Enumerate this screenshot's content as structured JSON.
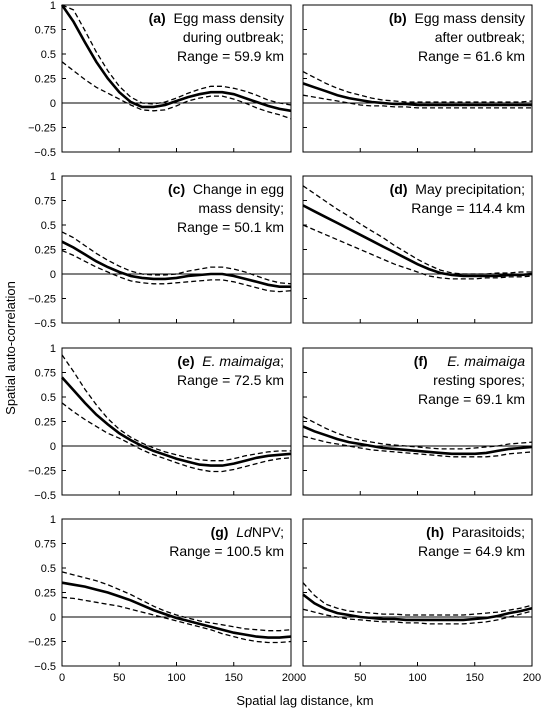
{
  "figure": {
    "ylabel": "Spatial auto-correlation",
    "xlabel": "Spatial lag distance, km"
  },
  "chart_data": [
    {
      "type": "line",
      "tag": "(a)",
      "label_lines": [
        "Egg mass density",
        "during outbreak;",
        "Range = 59.9 km"
      ],
      "xlim": [
        0,
        200
      ],
      "ylim": [
        -0.5,
        1
      ],
      "xticks": [
        "0",
        "50",
        "100",
        "150",
        "200"
      ],
      "yticks": [
        "1",
        "0.75",
        "0.5",
        "0.25",
        "0",
        "−0.25",
        "−0.5"
      ],
      "x": [
        0,
        10,
        20,
        30,
        40,
        50,
        60,
        70,
        80,
        90,
        100,
        110,
        120,
        130,
        140,
        150,
        160,
        170,
        180,
        190,
        200
      ],
      "series": [
        {
          "values": [
            1.0,
            0.83,
            0.62,
            0.42,
            0.25,
            0.11,
            0.01,
            -0.04,
            -0.04,
            -0.02,
            0.02,
            0.06,
            0.09,
            0.11,
            0.11,
            0.09,
            0.05,
            0.01,
            -0.03,
            -0.06,
            -0.08
          ]
        },
        {
          "values": [
            1.08,
            0.95,
            0.74,
            0.52,
            0.33,
            0.17,
            0.06,
            0.0,
            -0.01,
            0.01,
            0.05,
            0.1,
            0.14,
            0.17,
            0.17,
            0.15,
            0.12,
            0.08,
            0.03,
            0.0,
            -0.02
          ]
        },
        {
          "values": [
            0.42,
            0.33,
            0.24,
            0.16,
            0.1,
            0.04,
            -0.02,
            -0.07,
            -0.08,
            -0.07,
            -0.03,
            0.02,
            0.05,
            0.07,
            0.07,
            0.04,
            0.0,
            -0.05,
            -0.09,
            -0.12,
            -0.16
          ]
        }
      ]
    },
    {
      "type": "line",
      "tag": "(b)",
      "label_lines": [
        "Egg mass density",
        "after outbreak;",
        "Range = 61.6 km"
      ],
      "xlim": [
        0,
        200
      ],
      "ylim": [
        -0.5,
        1
      ],
      "xticks": [
        "0",
        "50",
        "100",
        "150",
        "200"
      ],
      "yticks": [
        "1",
        "0.75",
        "0.5",
        "0.25",
        "0",
        "−0.25",
        "−0.5"
      ],
      "x": [
        0,
        10,
        20,
        30,
        40,
        50,
        60,
        70,
        80,
        90,
        100,
        110,
        120,
        130,
        140,
        150,
        160,
        170,
        180,
        190,
        200
      ],
      "series": [
        {
          "values": [
            0.2,
            0.16,
            0.12,
            0.08,
            0.05,
            0.03,
            0.01,
            0.0,
            -0.01,
            -0.01,
            -0.02,
            -0.02,
            -0.02,
            -0.02,
            -0.02,
            -0.02,
            -0.02,
            -0.02,
            -0.02,
            -0.02,
            -0.02
          ]
        },
        {
          "values": [
            0.32,
            0.26,
            0.2,
            0.15,
            0.11,
            0.08,
            0.05,
            0.03,
            0.02,
            0.01,
            0.01,
            0.01,
            0.01,
            0.01,
            0.01,
            0.01,
            0.01,
            0.01,
            0.01,
            0.01,
            0.02
          ]
        },
        {
          "values": [
            0.08,
            0.06,
            0.04,
            0.02,
            0.0,
            -0.02,
            -0.03,
            -0.03,
            -0.04,
            -0.04,
            -0.05,
            -0.05,
            -0.05,
            -0.05,
            -0.05,
            -0.05,
            -0.05,
            -0.05,
            -0.05,
            -0.05,
            -0.05
          ]
        }
      ]
    },
    {
      "type": "line",
      "tag": "(c)",
      "label_lines": [
        "Change in egg",
        "mass density;",
        "Range = 50.1 km"
      ],
      "xlim": [
        0,
        200
      ],
      "ylim": [
        -0.5,
        1
      ],
      "xticks": [
        "0",
        "50",
        "100",
        "150",
        "200"
      ],
      "yticks": [
        "1",
        "0.75",
        "0.5",
        "0.25",
        "0",
        "−0.25",
        "−0.5"
      ],
      "x": [
        0,
        10,
        20,
        30,
        40,
        50,
        60,
        70,
        80,
        90,
        100,
        110,
        120,
        130,
        140,
        150,
        160,
        170,
        180,
        190,
        200
      ],
      "series": [
        {
          "values": [
            0.33,
            0.27,
            0.2,
            0.13,
            0.07,
            0.02,
            -0.02,
            -0.04,
            -0.05,
            -0.05,
            -0.04,
            -0.02,
            -0.01,
            0.0,
            0.0,
            -0.02,
            -0.05,
            -0.08,
            -0.11,
            -0.13,
            -0.13
          ]
        },
        {
          "values": [
            0.43,
            0.37,
            0.29,
            0.21,
            0.14,
            0.08,
            0.03,
            0.0,
            -0.01,
            -0.01,
            0.0,
            0.03,
            0.05,
            0.07,
            0.07,
            0.05,
            0.02,
            -0.02,
            -0.06,
            -0.09,
            -0.1
          ]
        },
        {
          "values": [
            0.24,
            0.19,
            0.13,
            0.07,
            0.02,
            -0.03,
            -0.07,
            -0.09,
            -0.1,
            -0.1,
            -0.09,
            -0.08,
            -0.07,
            -0.06,
            -0.06,
            -0.08,
            -0.11,
            -0.14,
            -0.17,
            -0.18,
            -0.17
          ]
        }
      ]
    },
    {
      "type": "line",
      "tag": "(d)",
      "label_lines": [
        "May precipitation;",
        "Range = 114.4 km"
      ],
      "xlim": [
        0,
        200
      ],
      "ylim": [
        -0.5,
        1
      ],
      "xticks": [
        "0",
        "50",
        "100",
        "150",
        "200"
      ],
      "yticks": [
        "1",
        "0.75",
        "0.5",
        "0.25",
        "0",
        "−0.25",
        "−0.5"
      ],
      "x": [
        0,
        10,
        20,
        30,
        40,
        50,
        60,
        70,
        80,
        90,
        100,
        110,
        120,
        130,
        140,
        150,
        160,
        170,
        180,
        190,
        200
      ],
      "series": [
        {
          "values": [
            0.7,
            0.64,
            0.58,
            0.52,
            0.46,
            0.4,
            0.34,
            0.28,
            0.22,
            0.16,
            0.1,
            0.05,
            0.01,
            -0.01,
            -0.02,
            -0.02,
            -0.02,
            -0.02,
            -0.01,
            -0.01,
            0.0
          ]
        },
        {
          "values": [
            0.9,
            0.82,
            0.74,
            0.66,
            0.59,
            0.51,
            0.44,
            0.37,
            0.29,
            0.22,
            0.15,
            0.09,
            0.04,
            0.01,
            0.0,
            0.0,
            0.0,
            0.01,
            0.01,
            0.02,
            0.02
          ]
        },
        {
          "values": [
            0.5,
            0.45,
            0.4,
            0.35,
            0.3,
            0.25,
            0.2,
            0.15,
            0.1,
            0.06,
            0.02,
            -0.02,
            -0.04,
            -0.05,
            -0.05,
            -0.05,
            -0.04,
            -0.04,
            -0.03,
            -0.03,
            -0.02
          ]
        }
      ]
    },
    {
      "type": "line",
      "tag": "(e)",
      "label_italic": "E. maimaiga",
      "label_lines": [
        ";",
        "Range = 72.5 km"
      ],
      "xlim": [
        0,
        200
      ],
      "ylim": [
        -0.5,
        1
      ],
      "xticks": [
        "0",
        "50",
        "100",
        "150",
        "200"
      ],
      "yticks": [
        "1",
        "0.75",
        "0.5",
        "0.25",
        "0",
        "−0.25",
        "−0.5"
      ],
      "x": [
        0,
        10,
        20,
        30,
        40,
        50,
        60,
        70,
        80,
        90,
        100,
        110,
        120,
        130,
        140,
        150,
        160,
        170,
        180,
        190,
        200
      ],
      "series": [
        {
          "values": [
            0.7,
            0.57,
            0.44,
            0.32,
            0.22,
            0.13,
            0.06,
            0.0,
            -0.05,
            -0.09,
            -0.13,
            -0.16,
            -0.19,
            -0.2,
            -0.2,
            -0.18,
            -0.15,
            -0.12,
            -0.1,
            -0.09,
            -0.08
          ]
        },
        {
          "values": [
            0.93,
            0.76,
            0.58,
            0.42,
            0.28,
            0.17,
            0.09,
            0.03,
            -0.02,
            -0.06,
            -0.09,
            -0.12,
            -0.14,
            -0.15,
            -0.15,
            -0.13,
            -0.1,
            -0.08,
            -0.06,
            -0.05,
            -0.05
          ]
        },
        {
          "values": [
            0.44,
            0.35,
            0.27,
            0.2,
            0.13,
            0.08,
            0.02,
            -0.04,
            -0.09,
            -0.13,
            -0.17,
            -0.21,
            -0.24,
            -0.26,
            -0.26,
            -0.24,
            -0.21,
            -0.18,
            -0.15,
            -0.13,
            -0.12
          ]
        }
      ]
    },
    {
      "type": "line",
      "tag": "(f)",
      "label_italic": "E. maimaiga",
      "label_lines": [
        "resting spores;",
        "Range = 69.1 km"
      ],
      "xlim": [
        0,
        200
      ],
      "ylim": [
        -0.5,
        1
      ],
      "xticks": [
        "0",
        "50",
        "100",
        "150",
        "200"
      ],
      "yticks": [
        "1",
        "0.75",
        "0.5",
        "0.25",
        "0",
        "−0.25",
        "−0.5"
      ],
      "x": [
        0,
        10,
        20,
        30,
        40,
        50,
        60,
        70,
        80,
        90,
        100,
        110,
        120,
        130,
        140,
        150,
        160,
        170,
        180,
        190,
        200
      ],
      "series": [
        {
          "values": [
            0.2,
            0.15,
            0.11,
            0.07,
            0.04,
            0.02,
            0.0,
            -0.02,
            -0.03,
            -0.04,
            -0.05,
            -0.06,
            -0.07,
            -0.08,
            -0.08,
            -0.08,
            -0.07,
            -0.05,
            -0.03,
            -0.02,
            -0.01
          ]
        },
        {
          "values": [
            0.3,
            0.24,
            0.18,
            0.13,
            0.09,
            0.06,
            0.04,
            0.02,
            0.01,
            0.0,
            -0.01,
            -0.02,
            -0.03,
            -0.03,
            -0.03,
            -0.02,
            -0.01,
            0.0,
            0.02,
            0.03,
            0.04
          ]
        },
        {
          "values": [
            0.1,
            0.07,
            0.04,
            0.02,
            0.0,
            -0.02,
            -0.04,
            -0.05,
            -0.06,
            -0.07,
            -0.08,
            -0.09,
            -0.1,
            -0.11,
            -0.11,
            -0.11,
            -0.11,
            -0.1,
            -0.08,
            -0.07,
            -0.06
          ]
        }
      ]
    },
    {
      "type": "line",
      "tag": "(g)",
      "label_italic": "Ld",
      "label_lines": [
        "NPV;",
        "Range = 100.5 km"
      ],
      "xlim": [
        0,
        200
      ],
      "ylim": [
        -0.5,
        1
      ],
      "xticks": [
        "0",
        "50",
        "100",
        "150",
        "200"
      ],
      "yticks": [
        "1",
        "0.75",
        "0.5",
        "0.25",
        "0",
        "−0.25",
        "−0.5"
      ],
      "x": [
        0,
        10,
        20,
        30,
        40,
        50,
        60,
        70,
        80,
        90,
        100,
        110,
        120,
        130,
        140,
        150,
        160,
        170,
        180,
        190,
        200
      ],
      "series": [
        {
          "values": [
            0.35,
            0.33,
            0.31,
            0.28,
            0.25,
            0.21,
            0.17,
            0.12,
            0.07,
            0.03,
            -0.01,
            -0.04,
            -0.07,
            -0.1,
            -0.13,
            -0.16,
            -0.18,
            -0.2,
            -0.21,
            -0.21,
            -0.2
          ]
        },
        {
          "values": [
            0.46,
            0.43,
            0.4,
            0.37,
            0.33,
            0.28,
            0.23,
            0.17,
            0.11,
            0.06,
            0.02,
            -0.01,
            -0.04,
            -0.06,
            -0.08,
            -0.1,
            -0.12,
            -0.13,
            -0.14,
            -0.14,
            -0.13
          ]
        },
        {
          "values": [
            0.2,
            0.19,
            0.17,
            0.15,
            0.13,
            0.11,
            0.08,
            0.05,
            0.02,
            -0.01,
            -0.04,
            -0.07,
            -0.1,
            -0.13,
            -0.17,
            -0.2,
            -0.23,
            -0.25,
            -0.26,
            -0.26,
            -0.25
          ]
        }
      ]
    },
    {
      "type": "line",
      "tag": "(h)",
      "label_lines": [
        "Parasitoids;",
        "Range = 64.9 km"
      ],
      "xlim": [
        0,
        200
      ],
      "ylim": [
        -0.5,
        1
      ],
      "xticks": [
        "0",
        "50",
        "100",
        "150",
        "200"
      ],
      "yticks": [
        "1",
        "0.75",
        "0.5",
        "0.25",
        "0",
        "−0.25",
        "−0.5"
      ],
      "x": [
        0,
        10,
        20,
        30,
        40,
        50,
        60,
        70,
        80,
        90,
        100,
        110,
        120,
        130,
        140,
        150,
        160,
        170,
        180,
        190,
        200
      ],
      "series": [
        {
          "values": [
            0.23,
            0.14,
            0.08,
            0.04,
            0.02,
            0.0,
            -0.01,
            -0.02,
            -0.02,
            -0.03,
            -0.03,
            -0.03,
            -0.03,
            -0.03,
            -0.03,
            -0.02,
            -0.01,
            0.01,
            0.04,
            0.06,
            0.09
          ]
        },
        {
          "values": [
            0.35,
            0.22,
            0.13,
            0.09,
            0.06,
            0.05,
            0.04,
            0.03,
            0.03,
            0.02,
            0.02,
            0.02,
            0.02,
            0.02,
            0.02,
            0.03,
            0.04,
            0.05,
            0.07,
            0.09,
            0.12
          ]
        },
        {
          "values": [
            0.08,
            0.05,
            0.02,
            0.0,
            -0.02,
            -0.03,
            -0.04,
            -0.05,
            -0.05,
            -0.06,
            -0.06,
            -0.07,
            -0.07,
            -0.07,
            -0.07,
            -0.06,
            -0.05,
            -0.03,
            0.0,
            0.03,
            0.06
          ]
        }
      ]
    }
  ]
}
